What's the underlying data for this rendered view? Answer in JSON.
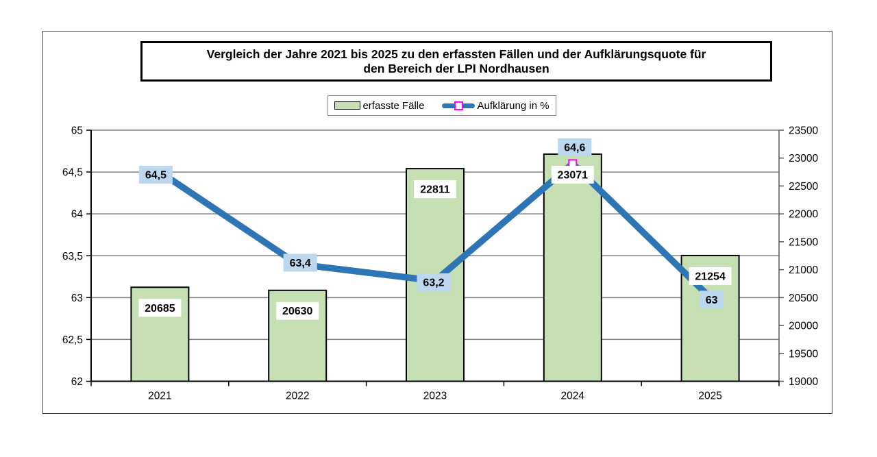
{
  "chart_data": {
    "type": "combo-bar-line",
    "title_lines": [
      "Vergleich der Jahre 2021 bis 2025 zu den erfassten Fällen und der Aufklärungsquote für",
      "den Bereich der LPI Nordhausen"
    ],
    "categories": [
      "2021",
      "2022",
      "2023",
      "2024",
      "2025"
    ],
    "series": [
      {
        "name": "erfasste Fälle",
        "type": "bar",
        "axis": "right",
        "values": [
          20685,
          20630,
          22811,
          23071,
          21254
        ],
        "data_labels": [
          "20685",
          "20630",
          "22811",
          "23071",
          "21254"
        ],
        "fill": "#c6e0b4",
        "stroke": "#000000",
        "label_bg": "#ffffff"
      },
      {
        "name": "Aufklärung in %",
        "type": "line",
        "axis": "left",
        "values": [
          64.5,
          63.4,
          63.2,
          64.6,
          63
        ],
        "data_labels": [
          "64,5",
          "63,4",
          "63,2",
          "64,6",
          "63"
        ],
        "color": "#2e75b6",
        "marker": "open-square",
        "marker_color": "#ff00ff",
        "label_bg": "#bdd7ee"
      }
    ],
    "left_axis": {
      "min": 62,
      "max": 65,
      "tick_labels": [
        "65",
        "64,5",
        "64",
        "63,5",
        "63",
        "62,5",
        "62"
      ]
    },
    "right_axis": {
      "min": 19000,
      "max": 23500,
      "tick_labels": [
        "23500",
        "23000",
        "22500",
        "22000",
        "21500",
        "21000",
        "20500",
        "20000",
        "19500",
        "19000"
      ]
    },
    "grid": {
      "horizontal": true,
      "color": "#7f7f7f"
    },
    "legend_position": "top",
    "colors": {
      "axis_line": "#000000",
      "right_axis_line": "#595959",
      "frame": "#404040",
      "text": "#000000"
    }
  }
}
